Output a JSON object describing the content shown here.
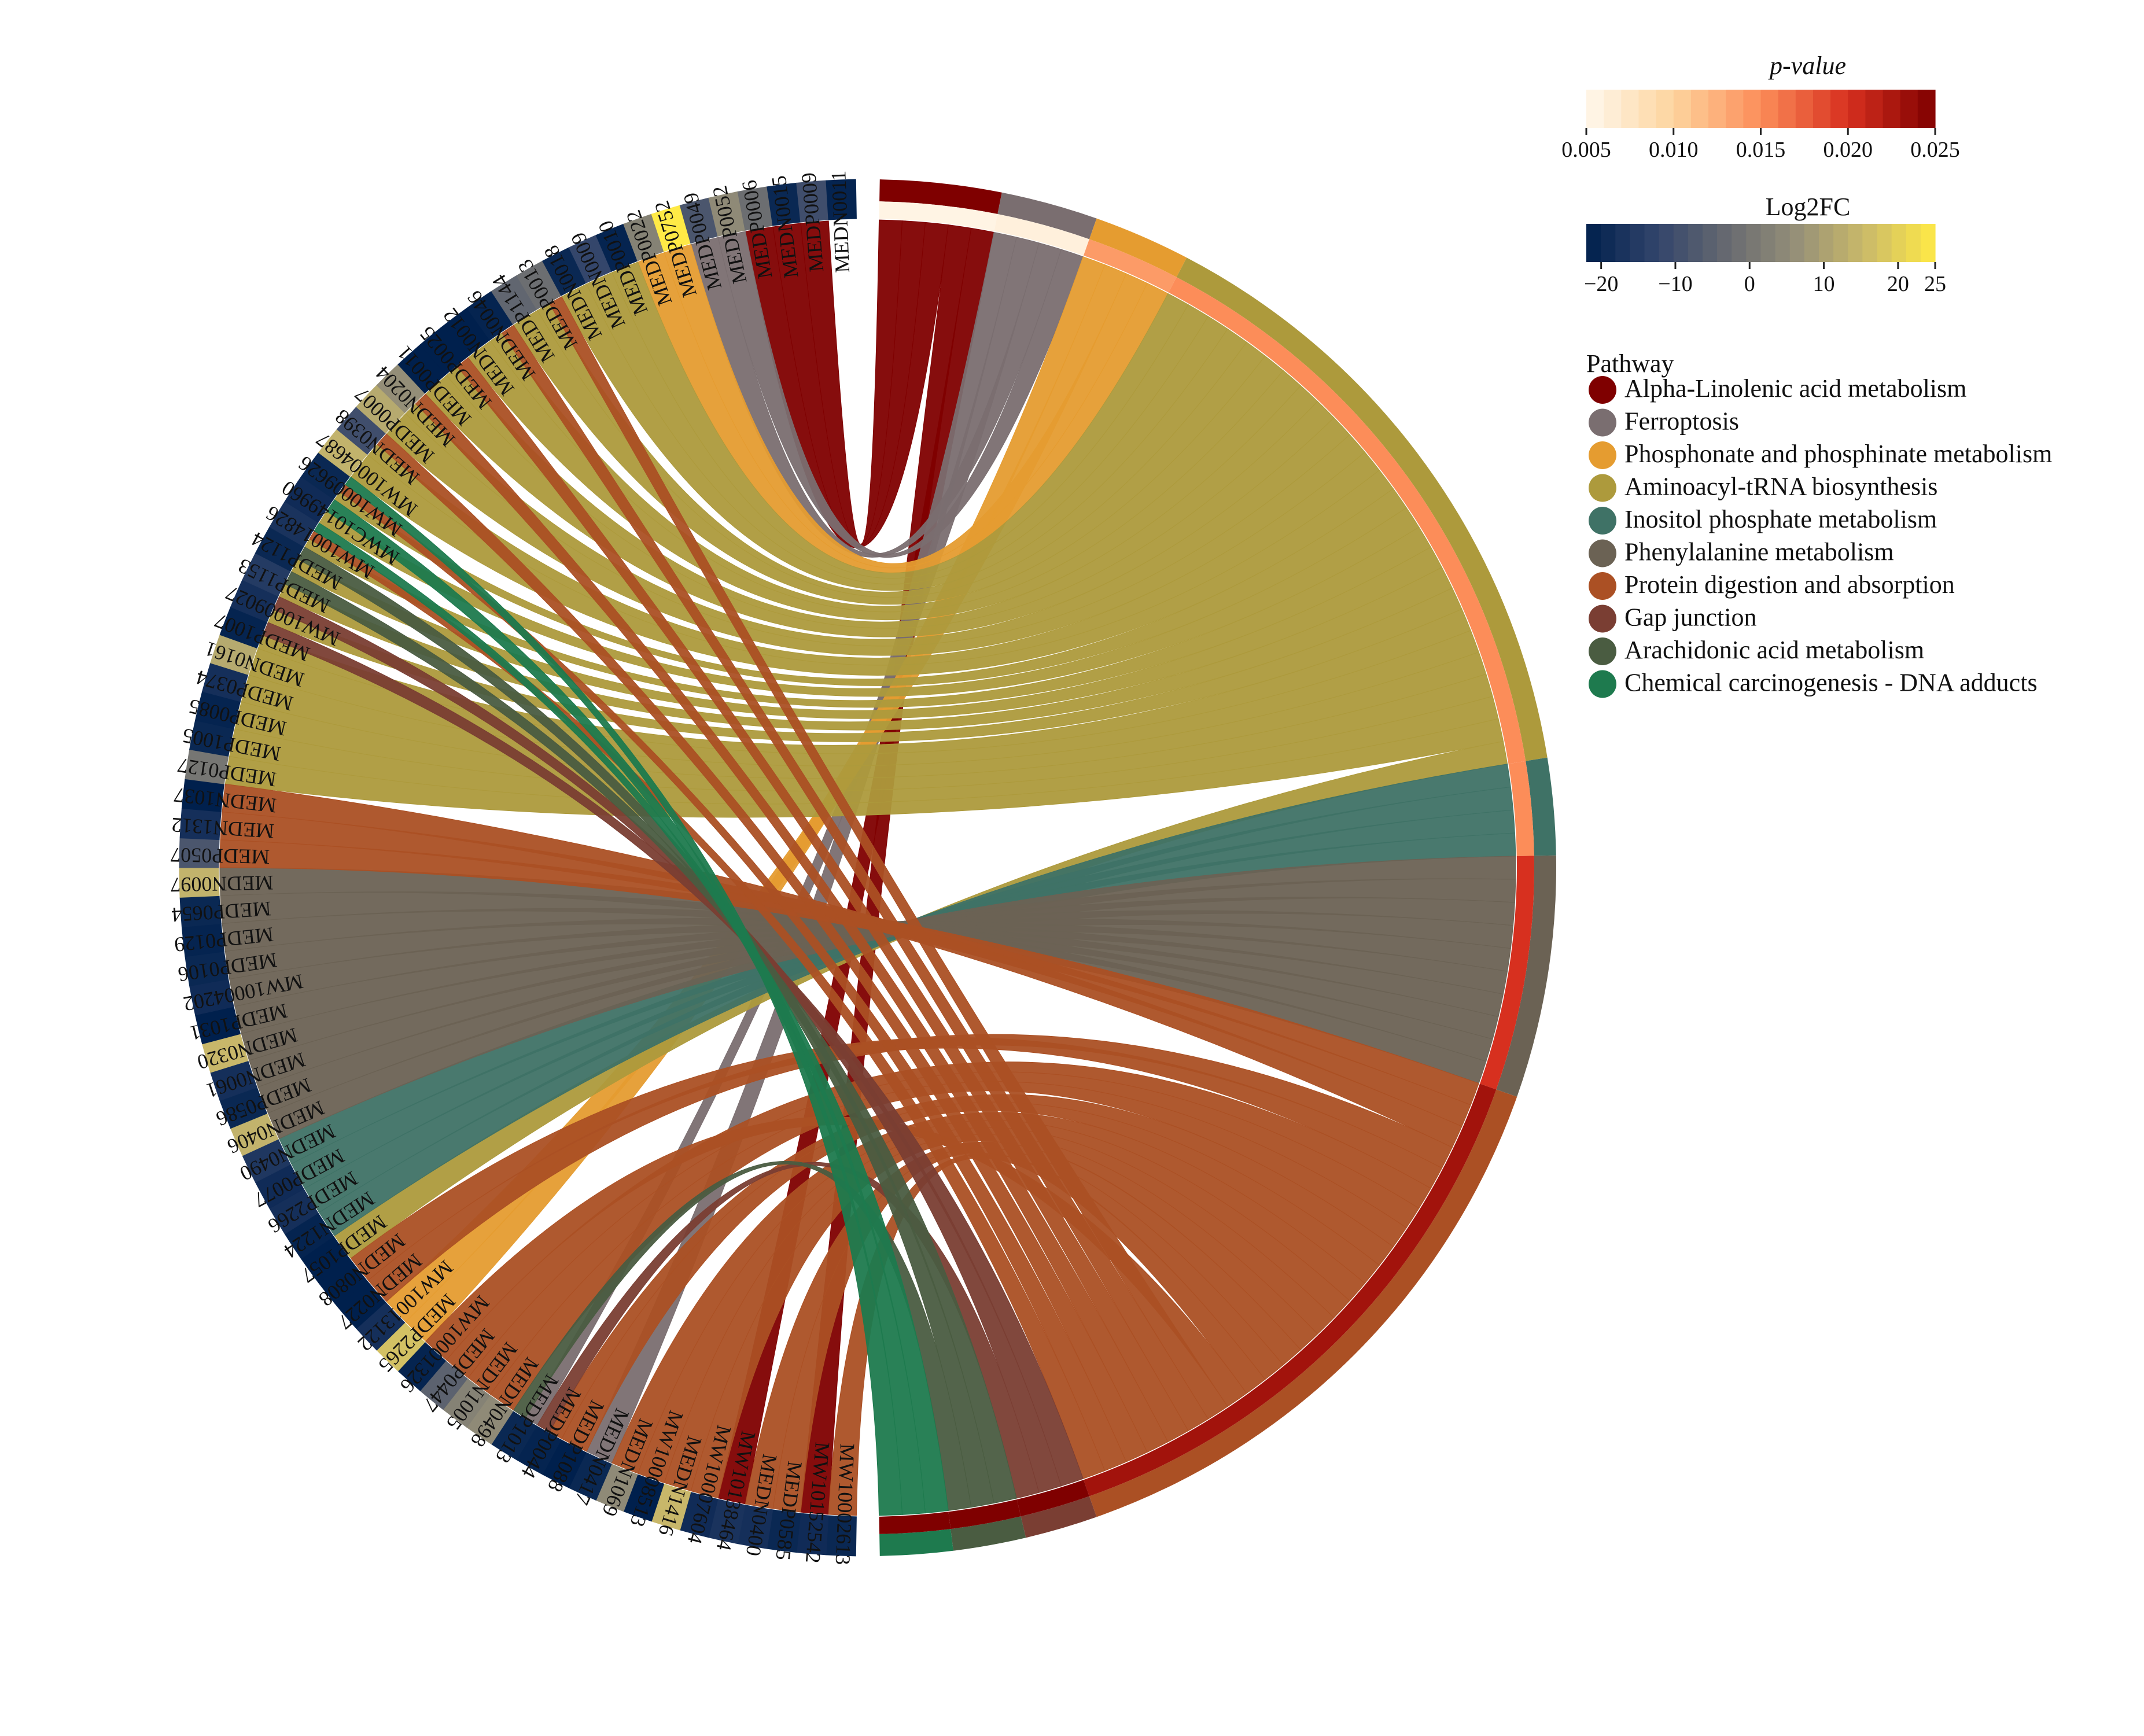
{
  "chart_data": {
    "type": "chord",
    "title": "",
    "legend": {
      "title": "Pathway",
      "placement": "right"
    },
    "pathways": [
      {
        "name": "Alpha-Linolenic acid metabolism",
        "color": "#7f0000",
        "pvalue": 0.0055,
        "metabolites": 5
      },
      {
        "name": "Ferroptosis",
        "color": "#7a6e70",
        "pvalue": 0.006,
        "metabolites": 4
      },
      {
        "name": "Phosphonate and phosphinate metabolism",
        "color": "#e59c30",
        "pvalue": 0.014,
        "metabolites": 4
      },
      {
        "name": "Aminoacyl-tRNA biosynthesis",
        "color": "#ad9a3c",
        "pvalue": 0.015,
        "metabolites": 26
      },
      {
        "name": "Inositol phosphate metabolism",
        "color": "#3f7266",
        "pvalue": 0.015,
        "metabolites": 4
      },
      {
        "name": "Phenylalanine metabolism",
        "color": "#6b6254",
        "pvalue": 0.02,
        "metabolites": 10
      },
      {
        "name": "Protein digestion and absorption",
        "color": "#ab5024",
        "pvalue": 0.023,
        "metabolites": 25
      },
      {
        "name": "Gap junction",
        "color": "#7a3e33",
        "pvalue": 0.025,
        "metabolites": 3
      },
      {
        "name": "Arachidonic acid metabolism",
        "color": "#4a5c41",
        "pvalue": 0.025,
        "metabolites": 3
      },
      {
        "name": "Chemical carcinogenesis - DNA adducts",
        "color": "#1e7a4e",
        "pvalue": 0.025,
        "metabolites": 3
      }
    ],
    "metabolites": [
      {
        "id": "MW10002613",
        "log2fc": -20
      },
      {
        "id": "MW10152542",
        "log2fc": -19
      },
      {
        "id": "MEDP0585",
        "log2fc": -20
      },
      {
        "id": "MEDN0400",
        "log2fc": -18
      },
      {
        "id": "MW10138464",
        "log2fc": -17
      },
      {
        "id": "MW10007604",
        "log2fc": -19
      },
      {
        "id": "MEDN1416",
        "log2fc": 15
      },
      {
        "id": "MW10008513",
        "log2fc": -22
      },
      {
        "id": "MEDN1069",
        "log2fc": 5
      },
      {
        "id": "MEDN0417",
        "log2fc": -20
      },
      {
        "id": "MEDP1088",
        "log2fc": -22
      },
      {
        "id": "MEDP0044",
        "log2fc": -21
      },
      {
        "id": "MEDP1013",
        "log2fc": -20
      },
      {
        "id": "MEDN0498",
        "log2fc": 5
      },
      {
        "id": "MEDN1005",
        "log2fc": 3
      },
      {
        "id": "MEDP0447",
        "log2fc": -5
      },
      {
        "id": "MW10001326",
        "log2fc": -21
      },
      {
        "id": "MEDP2265",
        "log2fc": 17
      },
      {
        "id": "MW10013122",
        "log2fc": -18
      },
      {
        "id": "MEDN0227",
        "log2fc": -22
      },
      {
        "id": "MEDN0808",
        "log2fc": -22
      },
      {
        "id": "MEDP1057",
        "log2fc": -22
      },
      {
        "id": "MEDN1224",
        "log2fc": -21
      },
      {
        "id": "MEDP2266",
        "log2fc": -18
      },
      {
        "id": "MEDP0077",
        "log2fc": -19
      },
      {
        "id": "MEDN0490",
        "log2fc": -16
      },
      {
        "id": "MEDN0406",
        "log2fc": 14
      },
      {
        "id": "MEDP0586",
        "log2fc": -20
      },
      {
        "id": "MEDN0061",
        "log2fc": -18
      },
      {
        "id": "MEDN0320",
        "log2fc": 15
      },
      {
        "id": "MEDP1031",
        "log2fc": -22
      },
      {
        "id": "MW10004202",
        "log2fc": -19
      },
      {
        "id": "MEDP0106",
        "log2fc": -20
      },
      {
        "id": "MEDP0129",
        "log2fc": -21
      },
      {
        "id": "MEDP0654",
        "log2fc": -20
      },
      {
        "id": "MEDN0097",
        "log2fc": 14
      },
      {
        "id": "MEDP0507",
        "log2fc": -8
      },
      {
        "id": "MEDN1312",
        "log2fc": -18
      },
      {
        "id": "MEDN1037",
        "log2fc": -23
      },
      {
        "id": "MEDP0127",
        "log2fc": 0
      },
      {
        "id": "MEDP1005",
        "log2fc": -20
      },
      {
        "id": "MEDP0085",
        "log2fc": -21
      },
      {
        "id": "MEDP0374",
        "log2fc": -18
      },
      {
        "id": "MEDN0161",
        "log2fc": 12
      },
      {
        "id": "MEDP1007",
        "log2fc": -21
      },
      {
        "id": "MW10009027",
        "log2fc": -18
      },
      {
        "id": "MEDP1153",
        "log2fc": -15
      },
      {
        "id": "MEDP1124",
        "log2fc": -20
      },
      {
        "id": "MW10014826",
        "log2fc": -17
      },
      {
        "id": "MWC10149960",
        "log2fc": -19
      },
      {
        "id": "MW10009626",
        "log2fc": -20
      },
      {
        "id": "MW10004687",
        "log2fc": 14
      },
      {
        "id": "MEDN0398",
        "log2fc": -10
      },
      {
        "id": "MEDP0007",
        "log2fc": 12
      },
      {
        "id": "MEDN0204",
        "log2fc": 6
      },
      {
        "id": "MEDP0011",
        "log2fc": -22
      },
      {
        "id": "MEDP0025",
        "log2fc": -23
      },
      {
        "id": "MEDN0012",
        "log2fc": -22
      },
      {
        "id": "MEDN0046",
        "log2fc": -21
      },
      {
        "id": "MEDP1144",
        "log2fc": -4
      },
      {
        "id": "MEDP0013",
        "log2fc": -2
      },
      {
        "id": "MEDN0018",
        "log2fc": -20
      },
      {
        "id": "MEDN0009",
        "log2fc": -12
      },
      {
        "id": "MEDP0010",
        "log2fc": -21
      },
      {
        "id": "MEDP0022",
        "log2fc": 3
      },
      {
        "id": "MEDP0752",
        "log2fc": 25
      },
      {
        "id": "MEDP0049",
        "log2fc": -8
      },
      {
        "id": "MEDP0052",
        "log2fc": 5
      },
      {
        "id": "MEDP0006",
        "log2fc": -2
      },
      {
        "id": "MEDN0015",
        "log2fc": -20
      },
      {
        "id": "MEDP0009",
        "log2fc": -10
      },
      {
        "id": "MEDN0011",
        "log2fc": -21
      }
    ],
    "links": [
      {
        "pathway": 0,
        "targets": [
          70,
          69,
          68,
          1,
          4
        ]
      },
      {
        "pathway": 1,
        "targets": [
          9,
          12,
          66,
          67
        ]
      },
      {
        "pathway": 2,
        "targets": [
          17,
          18,
          65,
          64
        ]
      },
      {
        "pathway": 3,
        "targets": [
          63,
          62,
          61,
          60,
          59,
          58,
          57,
          56,
          55,
          54,
          53,
          52,
          51,
          50,
          49,
          48,
          47,
          46,
          45,
          44,
          43,
          42,
          41,
          40,
          39,
          21
        ]
      },
      {
        "pathway": 4,
        "targets": [
          22,
          23,
          24,
          25
        ]
      },
      {
        "pathway": 5,
        "targets": [
          26,
          27,
          28,
          29,
          30,
          31,
          32,
          33,
          34,
          35
        ]
      },
      {
        "pathway": 6,
        "targets": [
          36,
          37,
          38,
          19,
          20,
          15,
          14,
          13,
          11,
          10,
          8,
          7,
          6,
          5,
          3,
          2,
          0,
          16,
          60,
          58,
          56,
          54,
          52,
          50,
          48
        ]
      },
      {
        "pathway": 7,
        "targets": [
          44,
          45,
          11
        ]
      },
      {
        "pathway": 8,
        "targets": [
          46,
          47,
          12
        ]
      },
      {
        "pathway": 9,
        "targets": [
          48,
          49,
          50
        ]
      }
    ],
    "colorbars": {
      "pvalue": {
        "title": "p-value",
        "ticks": [
          "0.005",
          "0.010",
          "0.015",
          "0.020",
          "0.025"
        ],
        "range": [
          0.005,
          0.025
        ],
        "colors": [
          "#fff7ec",
          "#fdd49e",
          "#fc8d59",
          "#d7301f",
          "#7f0000"
        ]
      },
      "log2fc": {
        "title": "Log2FC",
        "ticks": [
          "−20",
          "−10",
          "0",
          "10",
          "20",
          "25"
        ],
        "tick_values": [
          -20,
          -10,
          0,
          10,
          20,
          25
        ],
        "range": [
          -22,
          25
        ],
        "colors": [
          "#00204d",
          "#31446b",
          "#666970",
          "#958f78",
          "#cbba69",
          "#ffea46"
        ]
      }
    }
  }
}
